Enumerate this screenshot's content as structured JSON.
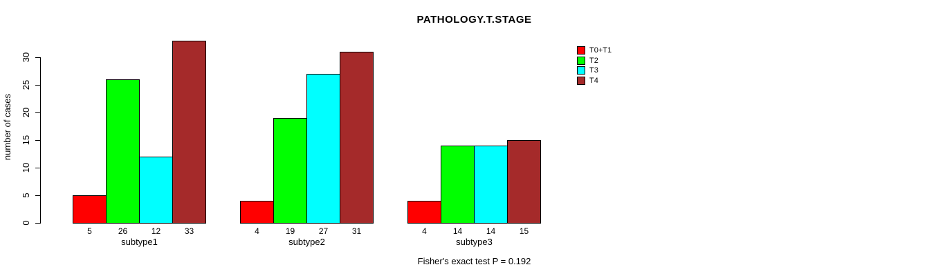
{
  "chart_data": {
    "type": "bar",
    "title": "PATHOLOGY.T.STAGE",
    "ylabel": "number of cases",
    "xlabel": "",
    "categories": [
      "subtype1",
      "subtype2",
      "subtype3"
    ],
    "series": [
      {
        "name": "T0+T1",
        "color": "#FF0000",
        "values": [
          5,
          4,
          4
        ]
      },
      {
        "name": "T2",
        "color": "#00FF00",
        "values": [
          26,
          19,
          14
        ]
      },
      {
        "name": "T3",
        "color": "#00FFFF",
        "values": [
          12,
          27,
          14
        ]
      },
      {
        "name": "T4",
        "color": "#A52A2A",
        "values": [
          33,
          31,
          15
        ]
      }
    ],
    "yticks": [
      0,
      5,
      10,
      15,
      20,
      25,
      30
    ],
    "ylim": [
      0,
      33
    ],
    "grid": false,
    "show_values_under_bars": true,
    "legend": {
      "position": "top-right",
      "entries": [
        "T0+T1",
        "T2",
        "T3",
        "T4"
      ]
    },
    "annotation": "Fisher's exact test P = 0.192",
    "axis_color": "#000000",
    "bar_border_color": "#000000"
  }
}
